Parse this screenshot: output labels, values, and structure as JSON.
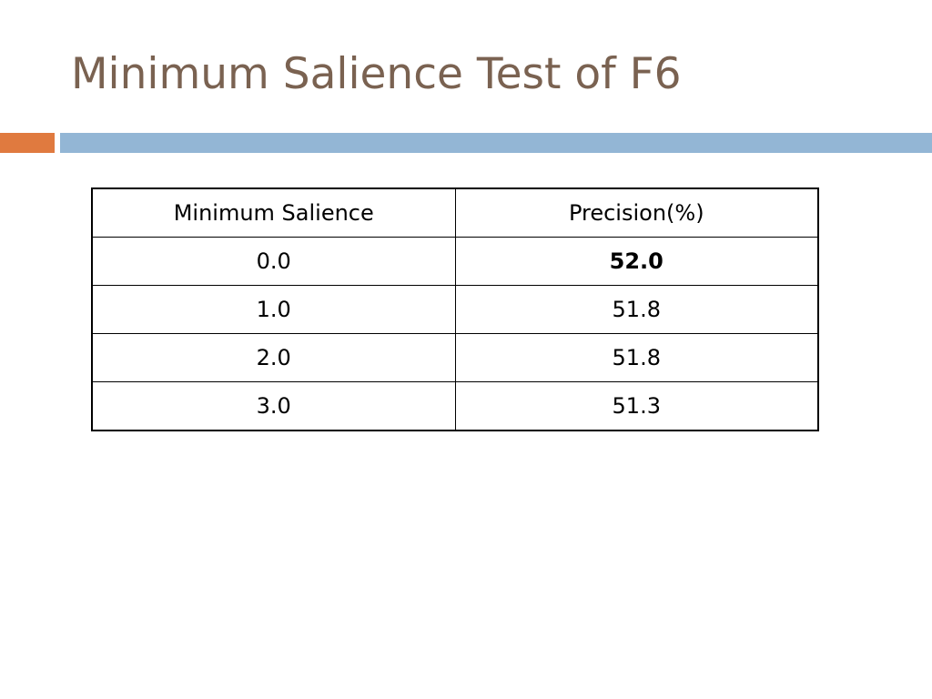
{
  "slide": {
    "title": "Minimum Salience Test of F6"
  },
  "colors": {
    "title": "#7a6251",
    "accent_bar": "#e07a3f",
    "rule_bar": "#93b6d5"
  },
  "table": {
    "headers": [
      "Minimum Salience",
      "Precision(%)"
    ],
    "rows": [
      {
        "min_salience": "0.0",
        "precision": "52.0",
        "bold": true
      },
      {
        "min_salience": "1.0",
        "precision": "51.8",
        "bold": false
      },
      {
        "min_salience": "2.0",
        "precision": "51.8",
        "bold": false
      },
      {
        "min_salience": "3.0",
        "precision": "51.3",
        "bold": false
      }
    ]
  }
}
